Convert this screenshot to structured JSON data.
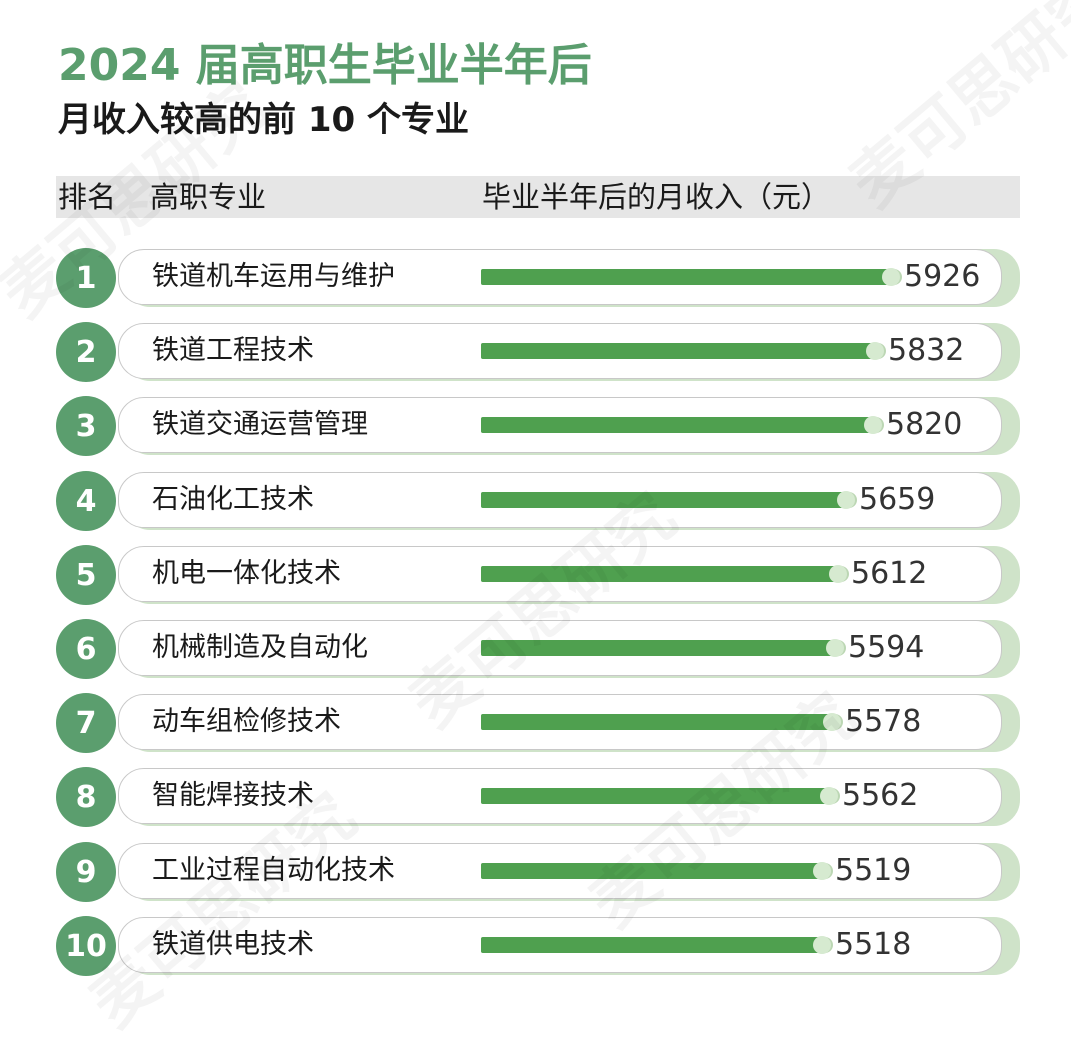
{
  "title_line1": "2024 届高职生毕业半年后",
  "title_line2": "月收入较高的前 10 个专业",
  "header": {
    "rank": "排名",
    "major": "高职专业",
    "income": "毕业半年后的月收入（元）"
  },
  "watermark": "麦可思研究",
  "colors": {
    "accent": "#5b9e6e",
    "bar": "#4fa04f",
    "bar_track": "#bcd7b4"
  },
  "chart_data": {
    "type": "bar",
    "orientation": "horizontal",
    "title": "2024 届高职生毕业半年后 月收入较高的前 10 个专业",
    "xlabel": "毕业半年后的月收入（元）",
    "ylabel": "高职专业",
    "ranks": [
      "1",
      "2",
      "3",
      "4",
      "5",
      "6",
      "7",
      "8",
      "9",
      "10"
    ],
    "categories": [
      "铁道机车运用与维护",
      "铁道工程技术",
      "铁道交通运营管理",
      "石油化工技术",
      "机电一体化技术",
      "机械制造及自动化",
      "动车组检修技术",
      "智能焊接技术",
      "工业过程自动化技术",
      "铁道供电技术"
    ],
    "values": [
      5926,
      5832,
      5820,
      5659,
      5612,
      5594,
      5578,
      5562,
      5519,
      5518
    ],
    "xlim": [
      0,
      5926
    ],
    "grid": false,
    "legend": false
  }
}
